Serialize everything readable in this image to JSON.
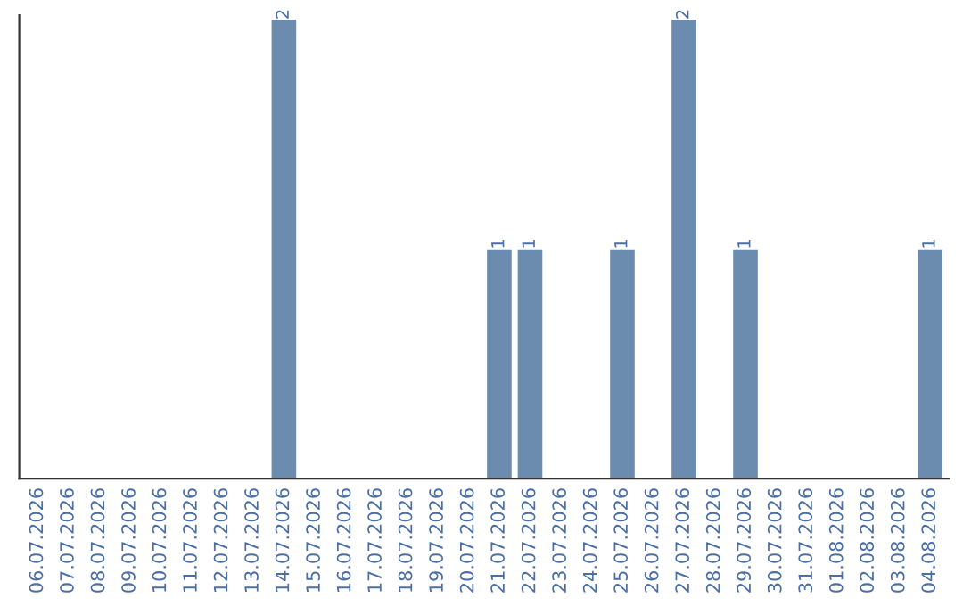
{
  "chart_data": {
    "type": "bar",
    "categories": [
      "06.07.2026",
      "07.07.2026",
      "08.07.2026",
      "09.07.2026",
      "10.07.2026",
      "11.07.2026",
      "12.07.2026",
      "13.07.2026",
      "14.07.2026",
      "15.07.2026",
      "16.07.2026",
      "17.07.2026",
      "18.07.2026",
      "19.07.2026",
      "20.07.2026",
      "21.07.2026",
      "22.07.2026",
      "23.07.2026",
      "24.07.2026",
      "25.07.2026",
      "26.07.2026",
      "27.07.2026",
      "28.07.2026",
      "29.07.2026",
      "30.07.2026",
      "31.07.2026",
      "01.08.2026",
      "02.08.2026",
      "03.08.2026",
      "04.08.2026"
    ],
    "values": [
      0,
      0,
      0,
      0,
      0,
      0,
      0,
      0,
      2,
      0,
      0,
      0,
      0,
      0,
      0,
      1,
      1,
      0,
      0,
      1,
      0,
      2,
      0,
      1,
      0,
      0,
      0,
      0,
      0,
      1
    ],
    "value_labels": [
      null,
      null,
      null,
      null,
      null,
      null,
      null,
      null,
      "2",
      null,
      null,
      null,
      null,
      null,
      null,
      "1",
      "1",
      null,
      null,
      "1",
      null,
      "2",
      null,
      "1",
      null,
      null,
      null,
      null,
      null,
      "1"
    ],
    "color": "#6b8cae",
    "tick_labels": "x",
    "grid": false,
    "legend": false
  }
}
